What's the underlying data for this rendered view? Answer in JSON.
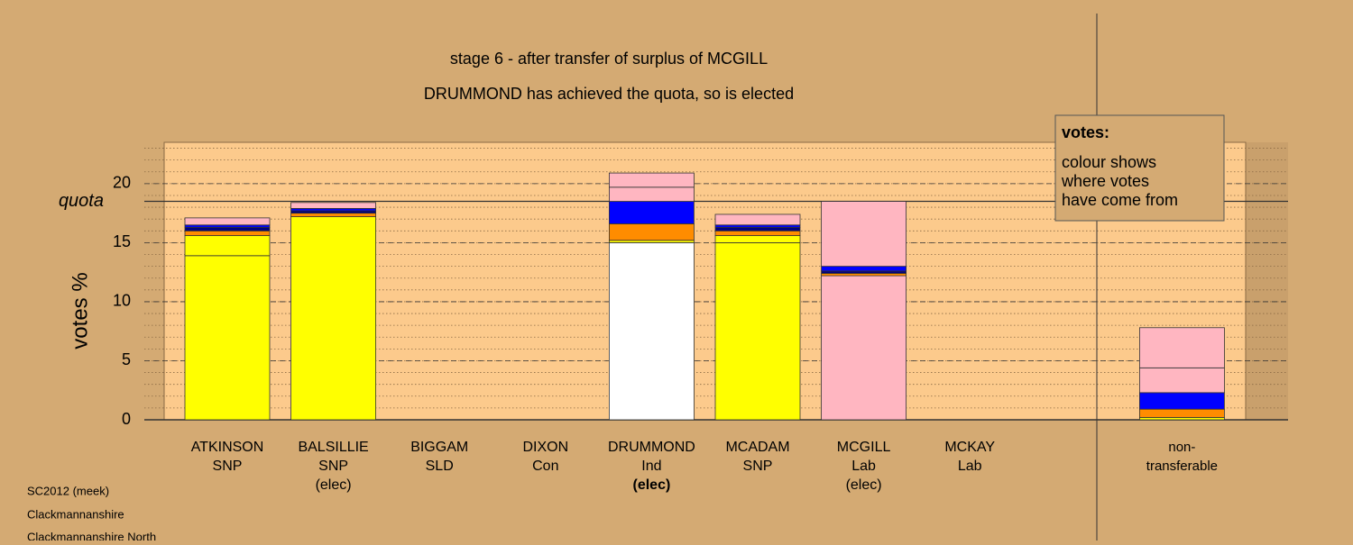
{
  "chart_data": {
    "type": "stacked-bar",
    "title": "stage 6 - after transfer of surplus of MCGILL",
    "subtitle": "DRUMMOND has achieved the quota, so is elected",
    "y_label": "votes %",
    "categories": [
      [
        "ATKINSON",
        "SNP"
      ],
      [
        "BALSILLIE",
        "SNP",
        "(elec)"
      ],
      [
        "BIGGAM",
        "SLD"
      ],
      [
        "DIXON",
        "Con"
      ],
      [
        "DRUMMOND",
        "Ind",
        "(elec)"
      ],
      [
        "MCADAM",
        "SNP"
      ],
      [
        "MCGILL",
        "Lab",
        "(elec)"
      ],
      [
        "MCKAY",
        "Lab"
      ],
      [
        "non-",
        "transferable"
      ]
    ],
    "highlight_category": 4,
    "stacks": [
      [
        {
          "value": 13.9,
          "color": "#ffff00"
        },
        {
          "value": 1.7,
          "color": "#ffff00"
        },
        {
          "value": 0.4,
          "color": "#ff8c00"
        },
        {
          "value": 0.3,
          "color": "#000080"
        },
        {
          "value": 0.2,
          "color": "#0000ff"
        },
        {
          "value": 0.6,
          "color": "#ffb6c1"
        }
      ],
      [
        {
          "value": 17.2,
          "color": "#ffff00"
        },
        {
          "value": 0.3,
          "color": "#ff8c00"
        },
        {
          "value": 0.2,
          "color": "#000080"
        },
        {
          "value": 0.2,
          "color": "#0000ff"
        },
        {
          "value": 0.5,
          "color": "#ffb6c1"
        }
      ],
      [],
      [],
      [
        {
          "value": 15.0,
          "color": "#ffffff"
        },
        {
          "value": 0.2,
          "color": "#ffff00"
        },
        {
          "value": 1.4,
          "color": "#ff8c00"
        },
        {
          "value": 1.9,
          "color": "#0000ff"
        },
        {
          "value": 1.2,
          "color": "#ffb6c1"
        },
        {
          "value": 1.2,
          "color": "#ffb6c1"
        }
      ],
      [
        {
          "value": 15.0,
          "color": "#ffff00"
        },
        {
          "value": 0.6,
          "color": "#ffff00"
        },
        {
          "value": 0.4,
          "color": "#ff8c00"
        },
        {
          "value": 0.3,
          "color": "#000080"
        },
        {
          "value": 0.2,
          "color": "#0000ff"
        },
        {
          "value": 0.9,
          "color": "#ffb6c1"
        }
      ],
      [
        {
          "value": 12.2,
          "color": "#ffb6c1"
        },
        {
          "value": 0.2,
          "color": "#ff8c00"
        },
        {
          "value": 0.2,
          "color": "#000080"
        },
        {
          "value": 0.4,
          "color": "#0000ff"
        },
        {
          "value": 5.5,
          "color": "#ffb6c1"
        }
      ],
      [],
      [
        {
          "value": 0.2,
          "color": "#ffff00"
        },
        {
          "value": 0.7,
          "color": "#ff8c00"
        },
        {
          "value": 1.4,
          "color": "#0000ff"
        },
        {
          "value": 2.1,
          "color": "#ffb6c1"
        },
        {
          "value": 3.4,
          "color": "#ffb6c1"
        }
      ]
    ],
    "quota": {
      "label": "quota",
      "value": 18.5
    },
    "ylim": [
      0,
      23.5
    ],
    "yticks": [
      0,
      5,
      10,
      15,
      20
    ],
    "minor_step": 1,
    "legend": {
      "title": "votes:",
      "lines": [
        "colour shows",
        "where votes",
        "have come from"
      ]
    },
    "footer": [
      "SC2012 (meek)",
      "Clackmannanshire",
      "Clackmannanshire North"
    ]
  }
}
